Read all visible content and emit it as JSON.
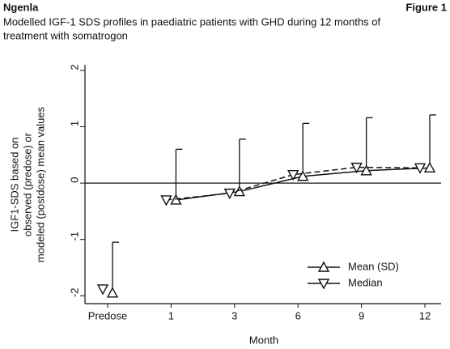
{
  "chart_data": {
    "type": "line",
    "header_left": "Ngenla",
    "header_right": "Figure 1",
    "title": [
      "Modelled IGF-1 SDS profiles in paediatric patients with GHD during 12 months of",
      "treatment with somatrogon"
    ],
    "xlabel": "Month",
    "ylabel": [
      "IGF1-SDS based on",
      "observed (predose) or",
      "modeled (postdose) mean values"
    ],
    "categories": [
      "Predose",
      "1",
      "3",
      "6",
      "9",
      "12"
    ],
    "series": [
      {
        "name": "Mean (SD)",
        "color": "#111111",
        "marker": "triangle-up",
        "dash": false,
        "values": [
          -1.95,
          -0.3,
          -0.15,
          0.12,
          0.22,
          0.27
        ],
        "error": [
          0.9,
          0.9,
          0.93,
          0.94,
          0.94,
          0.94
        ]
      },
      {
        "name": "Median",
        "color": "#111111",
        "marker": "triangle-down",
        "dash": true,
        "values": [
          -1.88,
          -0.3,
          -0.18,
          0.15,
          0.28,
          0.27
        ]
      }
    ],
    "ylim": [
      -2.14,
      2.1
    ],
    "yticks": [
      2,
      1,
      0,
      -1,
      -2
    ],
    "zero_line": true,
    "legend": "lower right"
  }
}
